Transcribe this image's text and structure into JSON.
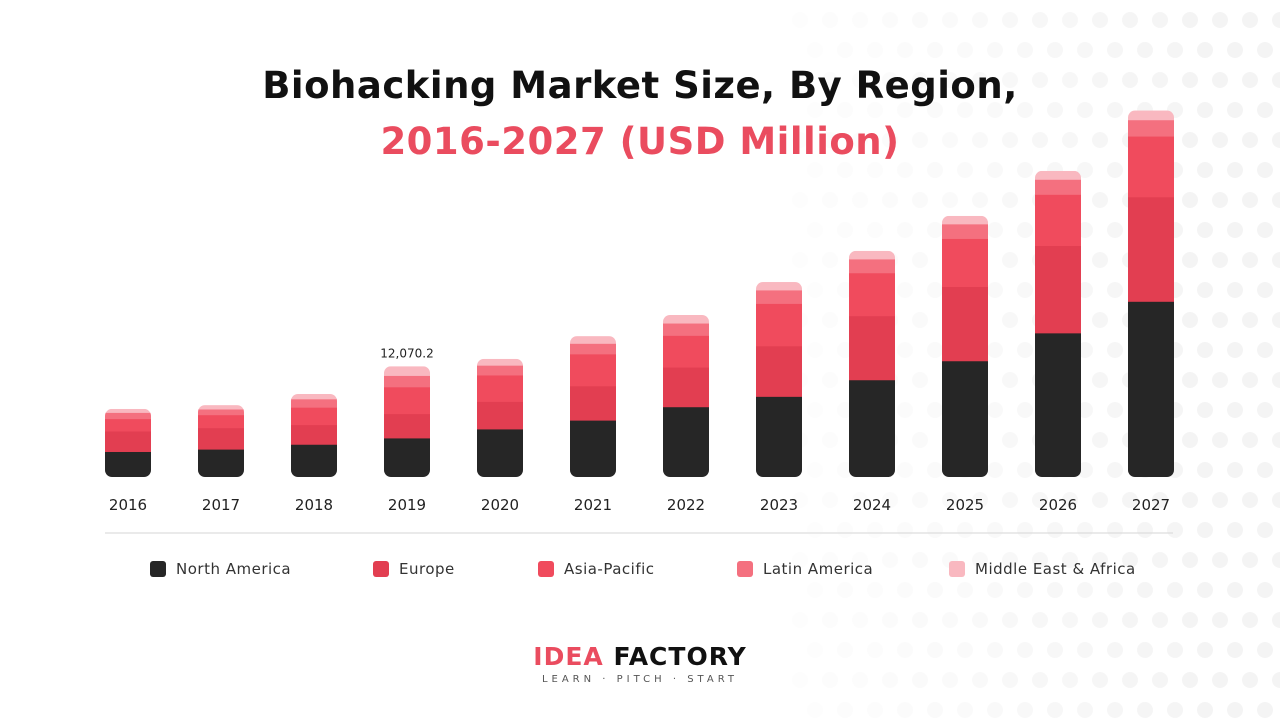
{
  "colors": {
    "accent": "#ea4c5f",
    "text_dark": "#111111",
    "axis_line": "#d6d6d6",
    "bg_dot": "#f4f4f4"
  },
  "chart_data": {
    "type": "bar",
    "stacked": true,
    "title": "Biohacking Market Size, By Region,",
    "subtitle": "2016-2027 (USD Million)",
    "categories": [
      "2016",
      "2017",
      "2018",
      "2019",
      "2020",
      "2021",
      "2022",
      "2023",
      "2024",
      "2025",
      "2026",
      "2027"
    ],
    "series": [
      {
        "name": "North America",
        "color": "#262626",
        "values": [
          2780,
          3040,
          3570,
          4260,
          5240,
          6200,
          7660,
          8790,
          10600,
          12670,
          15710,
          19150
        ]
      },
      {
        "name": "Europe",
        "color": "#e23e51",
        "values": [
          2230,
          2330,
          2140,
          2650,
          3000,
          3740,
          4320,
          5510,
          6980,
          8090,
          9520,
          11390
        ]
      },
      {
        "name": "Asia-Pacific",
        "color": "#f04b5d",
        "values": [
          1350,
          1420,
          1900,
          2920,
          2880,
          3480,
          3460,
          4620,
          4680,
          5240,
          5580,
          6620
        ]
      },
      {
        "name": "Latin America",
        "color": "#f4707f",
        "values": [
          680,
          620,
          910,
          1240,
          1070,
          1150,
          1340,
          1470,
          1510,
          1590,
          1640,
          1780
        ]
      },
      {
        "name": "Middle East & Africa",
        "color": "#f9b8c0",
        "values": [
          380,
          430,
          530,
          1000,
          690,
          790,
          880,
          860,
          880,
          870,
          910,
          1000
        ]
      }
    ],
    "data_labels": [
      {
        "category": "2019",
        "text": "12,070.2"
      }
    ],
    "ylim": [
      0,
      40000
    ],
    "grid": false,
    "legend_position": "bottom"
  },
  "logo": {
    "word1": "IDEA",
    "word2": "FACTORY",
    "tagline": "LEARN · PITCH · START"
  }
}
